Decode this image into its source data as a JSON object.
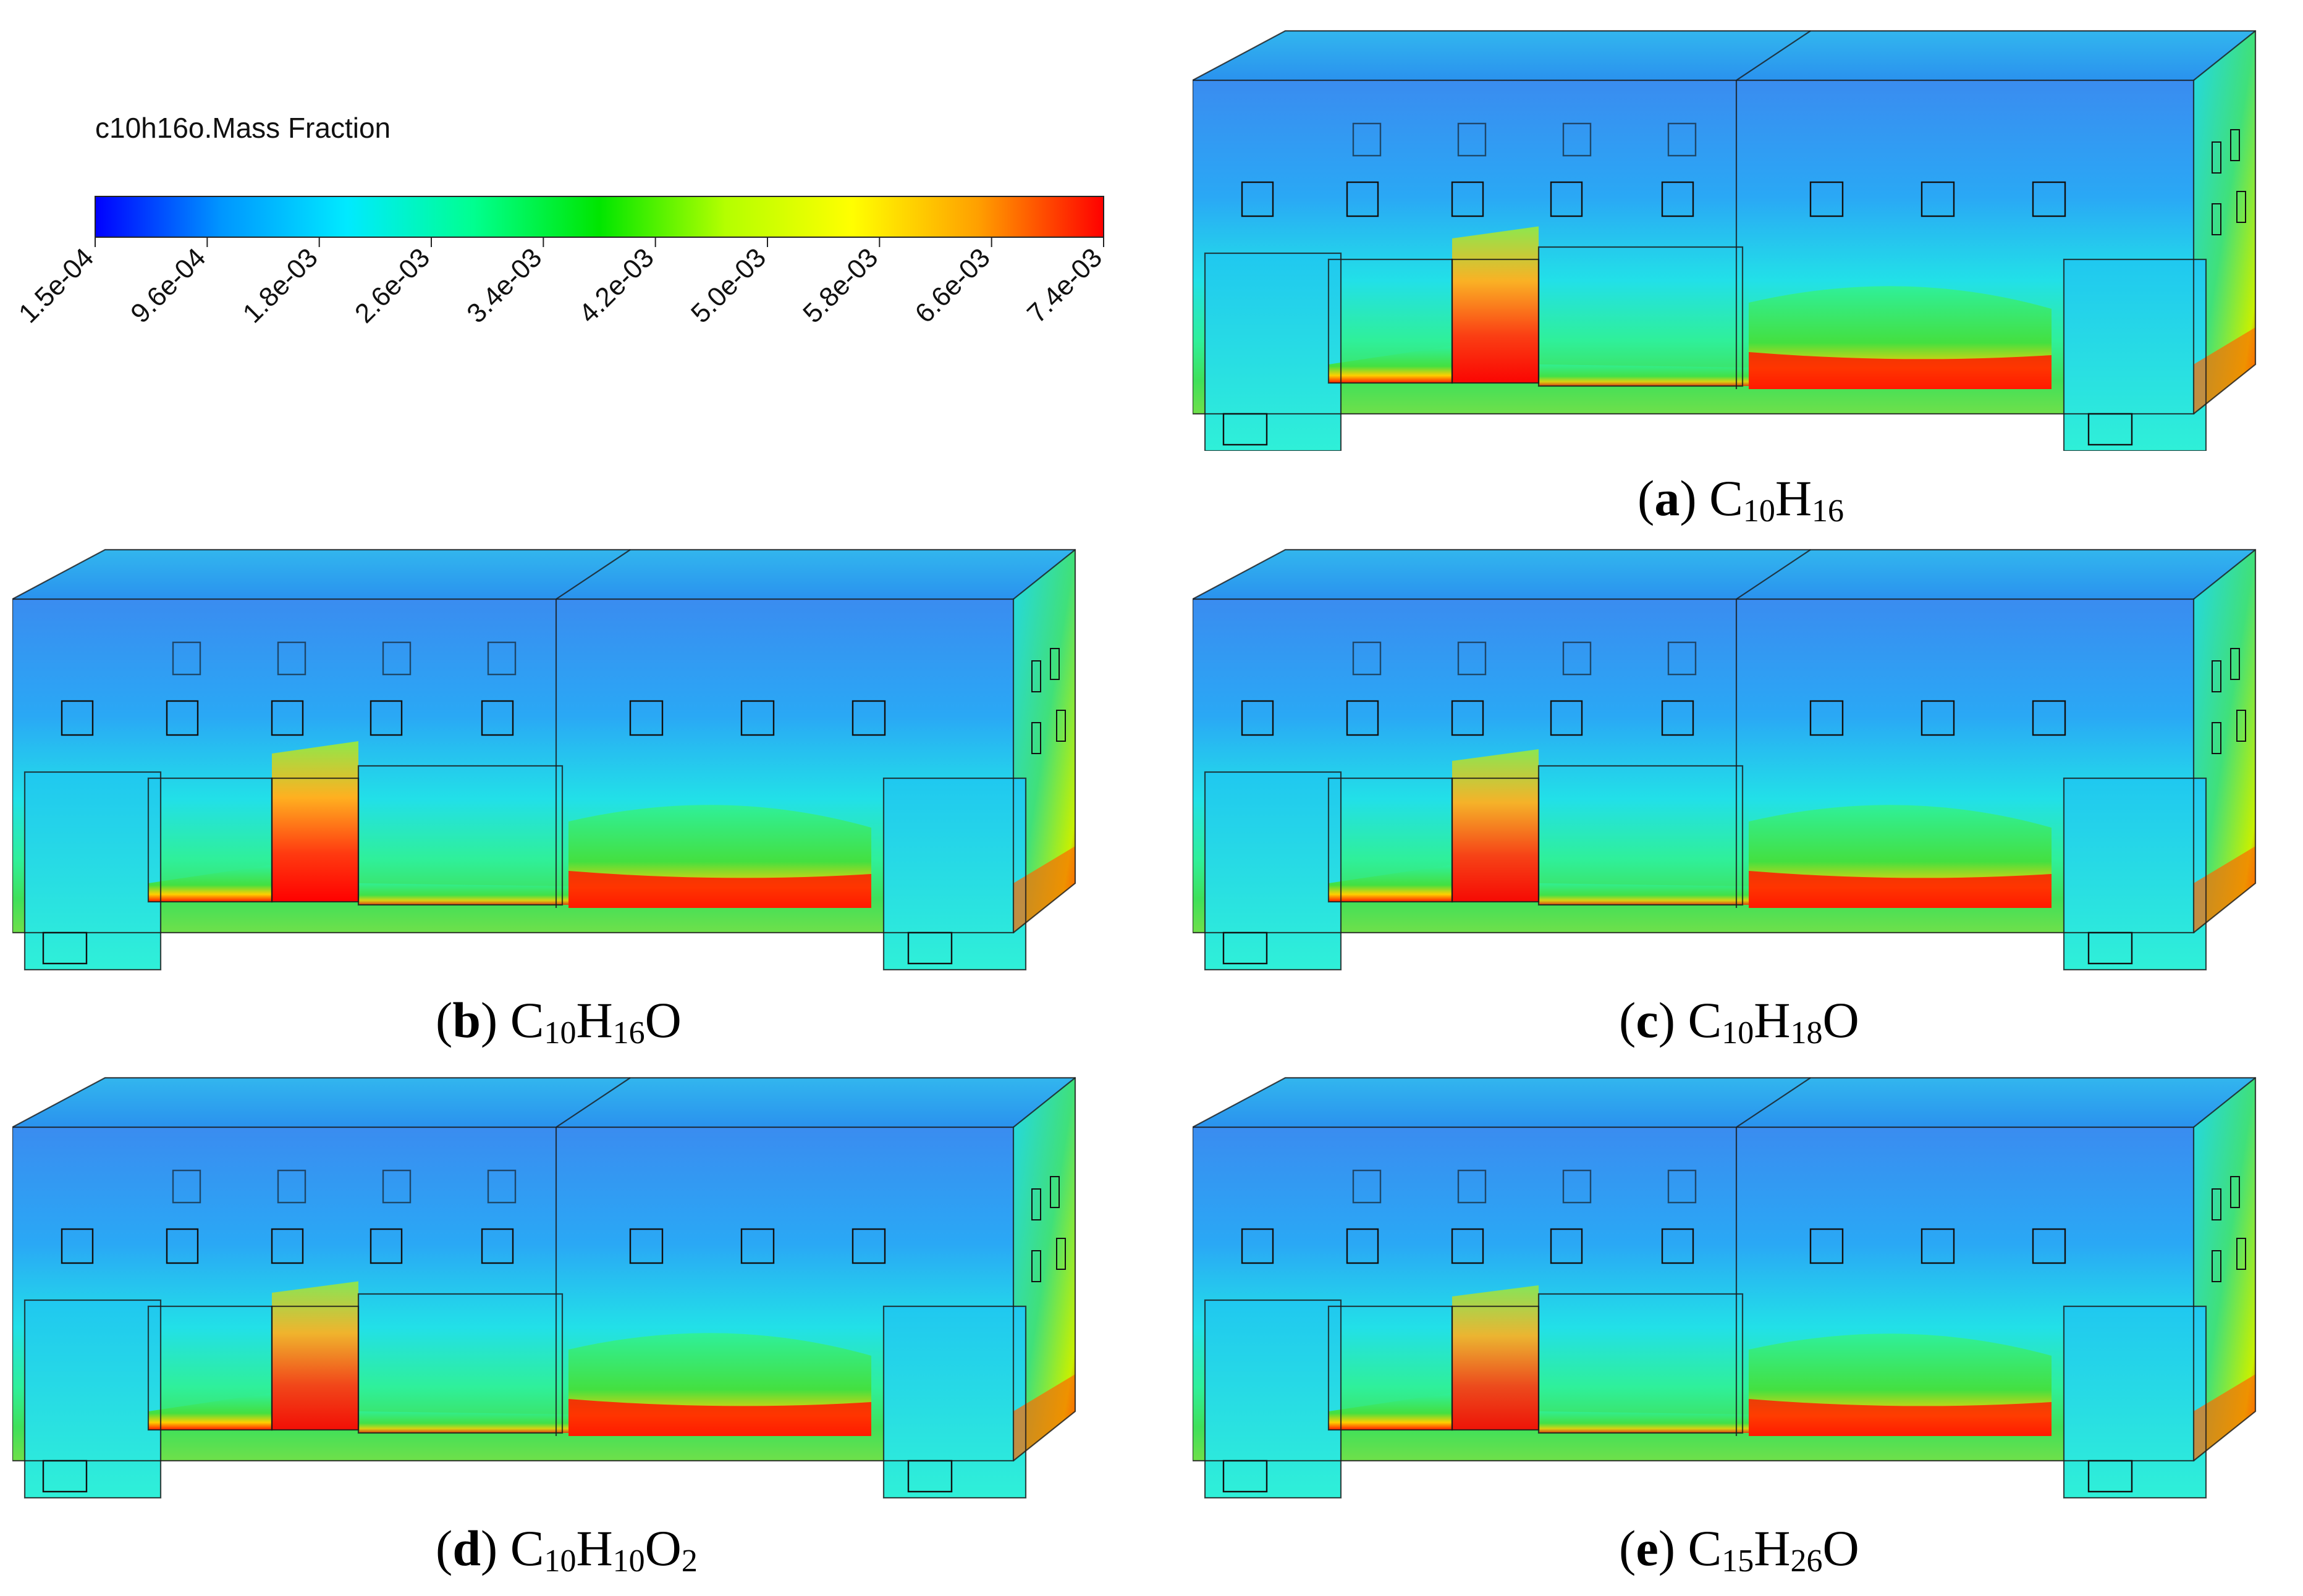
{
  "legend": {
    "title": "c10h16o.Mass Fraction",
    "ticks": [
      "1.5e-04",
      "9.6e-04",
      "1.8e-03",
      "2.6e-03",
      "3.4e-03",
      "4.2e-03",
      "5.0e-03",
      "5.8e-03",
      "6.6e-03",
      "7.4e-03"
    ],
    "colors": [
      "#0000ff",
      "#0096ff",
      "#00eaff",
      "#00ff90",
      "#00e600",
      "#b4ff00",
      "#ffff00",
      "#ffa000",
      "#ff0000"
    ]
  },
  "panels": [
    {
      "id": "a",
      "letter": "a",
      "formula": [
        [
          "C",
          ""
        ],
        [
          "10",
          "sub"
        ],
        [
          "H",
          ""
        ],
        [
          "16",
          "sub"
        ]
      ],
      "hot_center": 0.95,
      "hot_right": 0.95
    },
    {
      "id": "b",
      "letter": "b",
      "formula": [
        [
          "C",
          ""
        ],
        [
          "10",
          "sub"
        ],
        [
          "H",
          ""
        ],
        [
          "16",
          "sub"
        ],
        [
          "O",
          ""
        ]
      ],
      "hot_center": 1.0,
      "hot_right": 0.95
    },
    {
      "id": "c",
      "letter": "c",
      "formula": [
        [
          "C",
          ""
        ],
        [
          "10",
          "sub"
        ],
        [
          "H",
          ""
        ],
        [
          "18",
          "sub"
        ],
        [
          "O",
          ""
        ]
      ],
      "hot_center": 0.9,
      "hot_right": 0.95
    },
    {
      "id": "d",
      "letter": "d",
      "formula": [
        [
          "C",
          ""
        ],
        [
          "10",
          "sub"
        ],
        [
          "H",
          ""
        ],
        [
          "10",
          "sub"
        ],
        [
          "O",
          ""
        ],
        [
          "2",
          "sub"
        ]
      ],
      "hot_center": 0.85,
      "hot_right": 0.95
    },
    {
      "id": "e",
      "letter": "e",
      "formula": [
        [
          "C",
          ""
        ],
        [
          "15",
          "sub"
        ],
        [
          "H",
          ""
        ],
        [
          "26",
          "sub"
        ],
        [
          "O",
          ""
        ]
      ],
      "hot_center": 0.8,
      "hot_right": 0.9
    }
  ]
}
